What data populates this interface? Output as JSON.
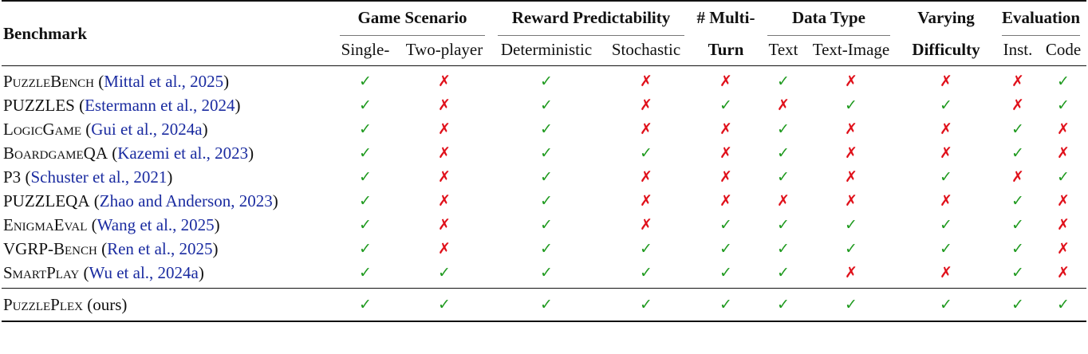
{
  "header": {
    "benchmark": "Benchmark",
    "groups": {
      "game_scenario": "Game Scenario",
      "reward_predictability": "Reward Predictability",
      "multi": "# Multi-",
      "data_type": "Data Type",
      "varying": "Varying",
      "evaluation": "Evaluation"
    },
    "sub": {
      "single": "Single-",
      "two_player": "Two-player",
      "deterministic": "Deterministic",
      "stochastic": "Stochastic",
      "turn": "Turn",
      "text": "Text",
      "text_image": "Text-Image",
      "difficulty": "Difficulty",
      "inst": "Inst.",
      "code": "Code"
    }
  },
  "symbols": {
    "yes": "✓",
    "no": "✗"
  },
  "rows": [
    {
      "name": "PuzzleBench",
      "cite": "Mittal et al., 2025",
      "marks": [
        1,
        0,
        1,
        0,
        0,
        1,
        0,
        0,
        0,
        1
      ]
    },
    {
      "name": "PUZZLES",
      "cite": "Estermann et al., 2024",
      "marks": [
        1,
        0,
        1,
        0,
        1,
        0,
        1,
        1,
        0,
        1
      ]
    },
    {
      "name": "LogicGame",
      "cite": "Gui et al., 2024a",
      "marks": [
        1,
        0,
        1,
        0,
        0,
        1,
        0,
        0,
        1,
        0
      ]
    },
    {
      "name": "BoardgameQA",
      "cite": "Kazemi et al., 2023",
      "marks": [
        1,
        0,
        1,
        1,
        0,
        1,
        0,
        0,
        1,
        0
      ]
    },
    {
      "name": "P3",
      "cite": "Schuster et al., 2021",
      "marks": [
        1,
        0,
        1,
        0,
        0,
        1,
        0,
        1,
        0,
        1
      ]
    },
    {
      "name": "PUZZLEQA",
      "cite": "Zhao and Anderson, 2023",
      "marks": [
        1,
        0,
        1,
        0,
        0,
        0,
        0,
        0,
        1,
        0
      ]
    },
    {
      "name": "EnigmaEval",
      "cite": "Wang et al., 2025",
      "marks": [
        1,
        0,
        1,
        0,
        1,
        1,
        1,
        1,
        1,
        0
      ]
    },
    {
      "name": "VGRP-Bench",
      "cite": "Ren et al., 2025",
      "marks": [
        1,
        0,
        1,
        1,
        1,
        1,
        1,
        1,
        1,
        0
      ]
    },
    {
      "name": "SmartPlay",
      "cite": "Wu et al., 2024a",
      "marks": [
        1,
        1,
        1,
        1,
        1,
        1,
        0,
        0,
        1,
        0
      ]
    }
  ],
  "ours": {
    "name": "PuzzlePlex",
    "suffix": "(ours)",
    "marks": [
      1,
      1,
      1,
      1,
      1,
      1,
      1,
      1,
      1,
      1
    ]
  }
}
